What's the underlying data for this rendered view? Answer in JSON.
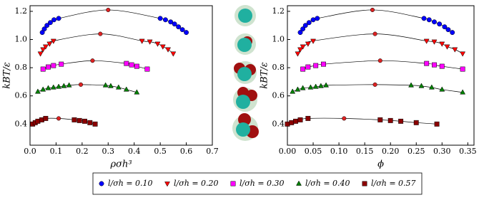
{
  "chart_data": [
    {
      "type": "scatter",
      "xlabel": "ρσh³",
      "ylabel": "kBT/ε",
      "xlim": [
        0,
        0.7
      ],
      "ylim": [
        0.25,
        1.24
      ],
      "xticks": [
        {
          "value": 0,
          "label": "0.0"
        },
        0.1,
        0.2,
        0.3,
        0.4,
        0.5,
        0.6,
        0.7
      ],
      "yticks": [
        0.4,
        0.6,
        0.8,
        {
          "value": 1,
          "label": "1.0"
        },
        1.2
      ],
      "series": [
        {
          "name": "l/σh = 0.10",
          "color": "#0000ff",
          "marker": "circle",
          "x": [
            0.047,
            0.055,
            0.065,
            0.078,
            0.092,
            0.11,
            0.5,
            0.52,
            0.54,
            0.555,
            0.57,
            0.585,
            0.6
          ],
          "y": [
            1.05,
            1.075,
            1.1,
            1.12,
            1.14,
            1.15,
            1.15,
            1.14,
            1.125,
            1.11,
            1.09,
            1.07,
            1.05
          ]
        },
        {
          "name": "l/σh = 0.20",
          "color": "#ff0000",
          "marker": "triangle-down",
          "x": [
            0.04,
            0.05,
            0.06,
            0.075,
            0.09,
            0.43,
            0.46,
            0.49,
            0.51,
            0.53,
            0.55
          ],
          "y": [
            0.9,
            0.93,
            0.95,
            0.97,
            0.99,
            0.99,
            0.985,
            0.97,
            0.95,
            0.93,
            0.9
          ]
        },
        {
          "name": "l/σh = 0.30",
          "color": "#ff00ff",
          "marker": "square",
          "x": [
            0.05,
            0.07,
            0.09,
            0.12,
            0.37,
            0.39,
            0.41,
            0.45
          ],
          "y": [
            0.79,
            0.805,
            0.815,
            0.825,
            0.83,
            0.82,
            0.81,
            0.79
          ]
        },
        {
          "name": "l/σh = 0.40",
          "color": "#008000",
          "marker": "triangle-up",
          "x": [
            0.03,
            0.05,
            0.07,
            0.09,
            0.11,
            0.13,
            0.15,
            0.29,
            0.31,
            0.34,
            0.37,
            0.41
          ],
          "y": [
            0.63,
            0.645,
            0.655,
            0.66,
            0.665,
            0.67,
            0.675,
            0.675,
            0.67,
            0.66,
            0.645,
            0.625
          ]
        },
        {
          "name": "l/σh = 0.57",
          "color": "#8b0000",
          "marker": "square",
          "x": [
            0.01,
            0.02,
            0.03,
            0.045,
            0.06,
            0.17,
            0.19,
            0.21,
            0.23,
            0.25
          ],
          "y": [
            0.4,
            0.41,
            0.42,
            0.43,
            0.44,
            0.43,
            0.425,
            0.42,
            0.41,
            0.4
          ]
        }
      ],
      "critical_points": {
        "color": "#dd2222",
        "x": [
          0.3,
          0.27,
          0.24,
          0.195,
          0.11
        ],
        "y": [
          1.21,
          1.04,
          0.85,
          0.68,
          0.44
        ]
      }
    },
    {
      "type": "scatter",
      "xlabel": "ϕ",
      "ylabel": "kBT/ε",
      "xlim": [
        0,
        0.362
      ],
      "ylim": [
        0.25,
        1.24
      ],
      "xticks": [
        {
          "value": 0,
          "label": "0.00"
        },
        0.05,
        {
          "value": 0.1,
          "label": "0.10"
        },
        0.15,
        {
          "value": 0.2,
          "label": "0.20"
        },
        0.25,
        {
          "value": 0.3,
          "label": "0.30"
        },
        0.35
      ],
      "yticks": [
        0.4,
        0.6,
        0.8,
        {
          "value": 1,
          "label": "1.0"
        },
        1.2
      ],
      "series": [
        {
          "name": "l/σh = 0.10",
          "color": "#0000ff",
          "marker": "circle",
          "x": [
            0.025,
            0.03,
            0.035,
            0.042,
            0.05,
            0.058,
            0.265,
            0.275,
            0.285,
            0.295,
            0.305,
            0.312,
            0.32
          ],
          "y": [
            1.05,
            1.075,
            1.1,
            1.12,
            1.14,
            1.15,
            1.15,
            1.14,
            1.125,
            1.11,
            1.09,
            1.07,
            1.05
          ]
        },
        {
          "name": "l/σh = 0.20",
          "color": "#ff0000",
          "marker": "triangle-down",
          "x": [
            0.02,
            0.025,
            0.03,
            0.04,
            0.05,
            0.27,
            0.285,
            0.3,
            0.31,
            0.325,
            0.34
          ],
          "y": [
            0.9,
            0.93,
            0.95,
            0.97,
            0.99,
            0.99,
            0.985,
            0.97,
            0.95,
            0.93,
            0.9
          ]
        },
        {
          "name": "l/σh = 0.30",
          "color": "#ff00ff",
          "marker": "square",
          "x": [
            0.03,
            0.04,
            0.055,
            0.07,
            0.27,
            0.285,
            0.3,
            0.34
          ],
          "y": [
            0.79,
            0.805,
            0.815,
            0.825,
            0.83,
            0.82,
            0.81,
            0.79
          ]
        },
        {
          "name": "l/σh = 0.40",
          "color": "#008000",
          "marker": "triangle-up",
          "x": [
            0.01,
            0.02,
            0.03,
            0.045,
            0.055,
            0.065,
            0.075,
            0.24,
            0.26,
            0.28,
            0.3,
            0.34
          ],
          "y": [
            0.63,
            0.645,
            0.655,
            0.66,
            0.665,
            0.67,
            0.675,
            0.675,
            0.67,
            0.66,
            0.645,
            0.625
          ]
        },
        {
          "name": "l/σh = 0.57",
          "color": "#8b0000",
          "marker": "square",
          "x": [
            0,
            0.008,
            0.016,
            0.025,
            0.04,
            0.18,
            0.2,
            0.22,
            0.25,
            0.29
          ],
          "y": [
            0.4,
            0.41,
            0.42,
            0.43,
            0.44,
            0.43,
            0.425,
            0.42,
            0.41,
            0.4
          ]
        }
      ],
      "critical_points": {
        "color": "#dd2222",
        "x": [
          0.165,
          0.17,
          0.18,
          0.17,
          0.11
        ],
        "y": [
          1.21,
          1.04,
          0.85,
          0.68,
          0.44
        ]
      }
    }
  ]
}
